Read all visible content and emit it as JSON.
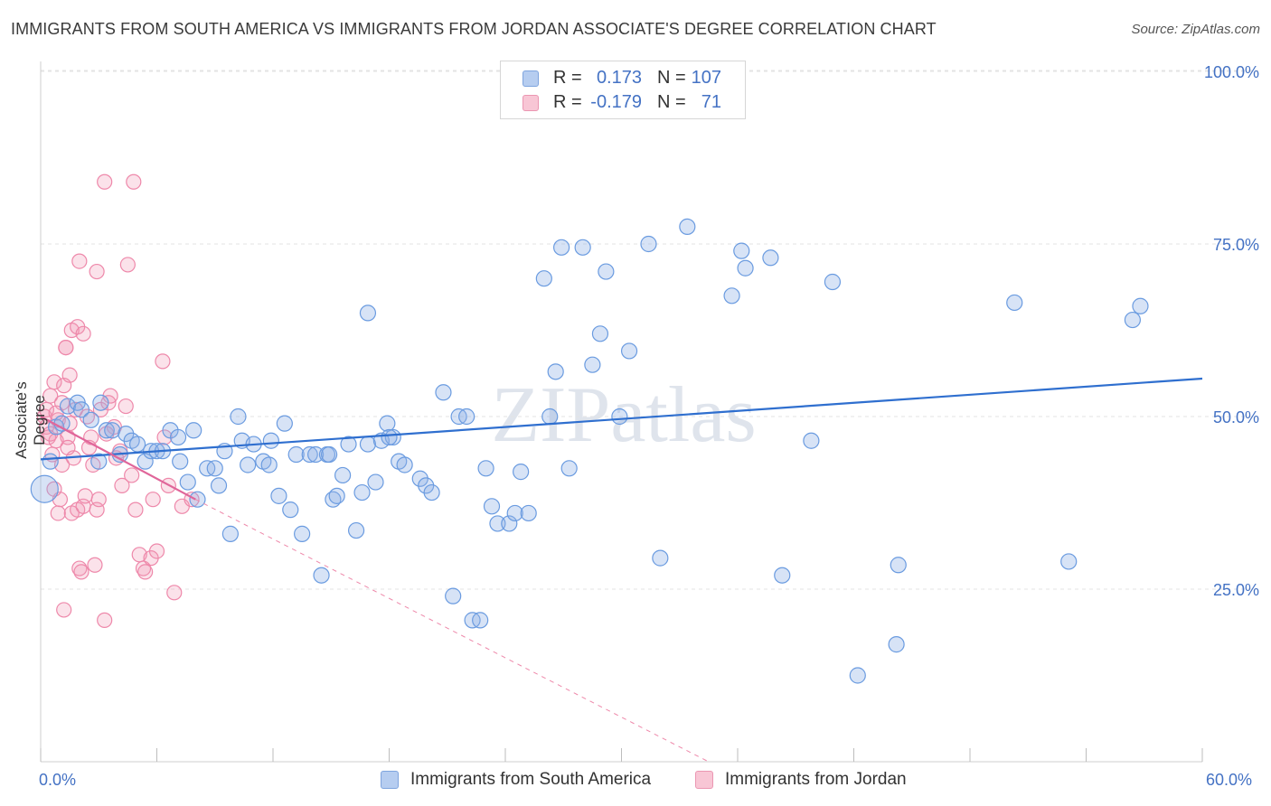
{
  "header": {
    "title": "IMMIGRANTS FROM SOUTH AMERICA VS IMMIGRANTS FROM JORDAN ASSOCIATE'S DEGREE CORRELATION CHART",
    "source": "Source: ZipAtlas.com"
  },
  "watermark": "ZIPatlas",
  "legend": {
    "rows": [
      {
        "r_label": "R =",
        "r_value": "0.173",
        "n_label": "N =",
        "n_value": "107",
        "color": "#6a9be0"
      },
      {
        "r_label": "R =",
        "r_value": "-0.179",
        "n_label": "N =",
        "n_value": "71",
        "color": "#ee88aa"
      }
    ]
  },
  "bottom_legend": {
    "series_a": "Immigrants from South America",
    "series_b": "Immigrants from Jordan"
  },
  "chart_data": {
    "type": "scatter",
    "title": "IMMIGRANTS FROM SOUTH AMERICA VS IMMIGRANTS FROM JORDAN ASSOCIATE'S DEGREE CORRELATION CHART",
    "xlabel": "",
    "ylabel": "Associate's Degree",
    "xlim": [
      0,
      60
    ],
    "ylim": [
      0,
      105
    ],
    "x_tick_labels": [
      "0.0%",
      "60.0%"
    ],
    "y_ticks": [
      25,
      50,
      75,
      100
    ],
    "y_tick_labels": [
      "25.0%",
      "50.0%",
      "75.0%",
      "100.0%"
    ],
    "grid": true,
    "series": [
      {
        "name": "Immigrants from South America",
        "color": "#6a9be0",
        "trend": {
          "x": [
            0,
            60
          ],
          "y": [
            43.8,
            55.5
          ],
          "dashed_extension": false
        },
        "points": [
          [
            0.2,
            39.5
          ],
          [
            0.5,
            43.5
          ],
          [
            0.8,
            48.5
          ],
          [
            1.1,
            49
          ],
          [
            1.4,
            51.5
          ],
          [
            1.9,
            52
          ],
          [
            2.1,
            51
          ],
          [
            2.6,
            49.5
          ],
          [
            3.1,
            52
          ],
          [
            3.4,
            48
          ],
          [
            3.7,
            48
          ],
          [
            4.1,
            44.5
          ],
          [
            4.4,
            47.5
          ],
          [
            4.7,
            46.5
          ],
          [
            5.0,
            46
          ],
          [
            5.4,
            43.5
          ],
          [
            5.7,
            45
          ],
          [
            6.0,
            45
          ],
          [
            6.7,
            48
          ],
          [
            7.1,
            47
          ],
          [
            7.2,
            43.5
          ],
          [
            7.6,
            40.5
          ],
          [
            7.9,
            48
          ],
          [
            8.1,
            38
          ],
          [
            8.6,
            42.5
          ],
          [
            9.0,
            42.5
          ],
          [
            9.2,
            40
          ],
          [
            9.5,
            45
          ],
          [
            9.8,
            33
          ],
          [
            10.2,
            50
          ],
          [
            10.4,
            46.5
          ],
          [
            10.7,
            43
          ],
          [
            11.0,
            46
          ],
          [
            11.5,
            43.5
          ],
          [
            11.8,
            43
          ],
          [
            11.9,
            46.5
          ],
          [
            12.3,
            38.5
          ],
          [
            12.6,
            49
          ],
          [
            12.9,
            36.5
          ],
          [
            13.2,
            44.5
          ],
          [
            13.5,
            33
          ],
          [
            13.9,
            44.5
          ],
          [
            14.2,
            44.5
          ],
          [
            14.5,
            27
          ],
          [
            14.8,
            44.5
          ],
          [
            15.1,
            38
          ],
          [
            15.3,
            38.5
          ],
          [
            15.6,
            41.5
          ],
          [
            15.9,
            46
          ],
          [
            16.3,
            33.5
          ],
          [
            16.6,
            39
          ],
          [
            16.9,
            46
          ],
          [
            17.3,
            40.5
          ],
          [
            17.6,
            46.5
          ],
          [
            17.9,
            49
          ],
          [
            18.2,
            47
          ],
          [
            18.5,
            43.5
          ],
          [
            18.8,
            43
          ],
          [
            18.0,
            47
          ],
          [
            19.6,
            41
          ],
          [
            19.9,
            40
          ],
          [
            20.2,
            39
          ],
          [
            20.8,
            53.5
          ],
          [
            21.3,
            24
          ],
          [
            21.6,
            50
          ],
          [
            22.0,
            50
          ],
          [
            22.3,
            20.5
          ],
          [
            22.7,
            20.5
          ],
          [
            23.0,
            42.5
          ],
          [
            23.3,
            37
          ],
          [
            23.6,
            34.5
          ],
          [
            24.2,
            34.5
          ],
          [
            24.5,
            36
          ],
          [
            24.8,
            42
          ],
          [
            25.2,
            36
          ],
          [
            26.0,
            70
          ],
          [
            26.3,
            50
          ],
          [
            26.6,
            56.5
          ],
          [
            26.9,
            74.5
          ],
          [
            27.3,
            42.5
          ],
          [
            28.0,
            74.5
          ],
          [
            28.5,
            57.5
          ],
          [
            28.9,
            62
          ],
          [
            29.2,
            71
          ],
          [
            29.9,
            50
          ],
          [
            30.4,
            59.5
          ],
          [
            31.4,
            75
          ],
          [
            32.0,
            29.5
          ],
          [
            33.4,
            77.5
          ],
          [
            35.7,
            67.5
          ],
          [
            36.2,
            74
          ],
          [
            36.4,
            71.5
          ],
          [
            37.7,
            73
          ],
          [
            38.3,
            27
          ],
          [
            39.8,
            46.5
          ],
          [
            40.9,
            69.5
          ],
          [
            42.2,
            12.5
          ],
          [
            44.2,
            17
          ],
          [
            44.3,
            28.5
          ],
          [
            50.3,
            66.5
          ],
          [
            53.1,
            29
          ],
          [
            56.4,
            64
          ],
          [
            56.8,
            66
          ],
          [
            3.0,
            43.5
          ],
          [
            6.3,
            45
          ],
          [
            16.9,
            65
          ],
          [
            14.9,
            44.5
          ]
        ]
      },
      {
        "name": "Immigrants from Jordan",
        "color": "#ee88aa",
        "trend": {
          "x": [
            0,
            8
          ],
          "y": [
            50.0,
            38.0
          ],
          "dashed_extension": true,
          "dashed_to": [
            34.5,
            0
          ]
        },
        "points": [
          [
            0.2,
            50
          ],
          [
            0.3,
            48.5
          ],
          [
            0.4,
            47
          ],
          [
            0.5,
            53
          ],
          [
            0.6,
            44.5
          ],
          [
            0.7,
            55
          ],
          [
            0.8,
            46.5
          ],
          [
            0.9,
            36
          ],
          [
            1.0,
            38
          ],
          [
            1.1,
            52
          ],
          [
            1.2,
            54.5
          ],
          [
            1.3,
            60
          ],
          [
            1.4,
            47
          ],
          [
            1.5,
            56
          ],
          [
            1.6,
            62.5
          ],
          [
            1.7,
            44
          ],
          [
            1.8,
            51
          ],
          [
            1.9,
            36.5
          ],
          [
            2.0,
            28
          ],
          [
            2.1,
            27.5
          ],
          [
            2.2,
            37
          ],
          [
            2.4,
            50
          ],
          [
            2.5,
            45.5
          ],
          [
            2.7,
            43
          ],
          [
            2.9,
            36.5
          ],
          [
            3.1,
            51
          ],
          [
            3.3,
            20.5
          ],
          [
            3.5,
            52
          ],
          [
            3.6,
            53
          ],
          [
            3.8,
            48.5
          ],
          [
            4.1,
            45
          ],
          [
            4.4,
            51.5
          ],
          [
            4.7,
            41.5
          ],
          [
            4.9,
            36.5
          ],
          [
            5.1,
            30
          ],
          [
            5.3,
            28
          ],
          [
            5.7,
            29.5
          ],
          [
            6.0,
            30.5
          ],
          [
            6.3,
            58
          ],
          [
            6.6,
            40
          ],
          [
            6.9,
            24.5
          ],
          [
            7.3,
            37
          ],
          [
            7.8,
            38
          ],
          [
            2.0,
            72.5
          ],
          [
            2.9,
            71
          ],
          [
            3.3,
            84
          ],
          [
            4.8,
            84
          ],
          [
            4.5,
            72
          ],
          [
            1.9,
            63
          ],
          [
            1.3,
            60
          ],
          [
            0.5,
            47.5
          ],
          [
            0.9,
            49.5
          ],
          [
            1.4,
            45.5
          ],
          [
            2.6,
            47
          ],
          [
            3.9,
            44
          ],
          [
            0.3,
            51
          ],
          [
            1.1,
            43
          ],
          [
            2.3,
            38.5
          ],
          [
            5.4,
            27.5
          ],
          [
            3.0,
            38
          ],
          [
            4.2,
            40
          ],
          [
            1.6,
            36
          ],
          [
            0.7,
            39.5
          ],
          [
            2.8,
            28.5
          ],
          [
            1.2,
            22
          ],
          [
            0.8,
            50.5
          ],
          [
            5.8,
            38
          ],
          [
            6.4,
            47
          ],
          [
            3.4,
            47.5
          ],
          [
            2.2,
            62
          ],
          [
            1.5,
            49
          ]
        ]
      }
    ]
  }
}
